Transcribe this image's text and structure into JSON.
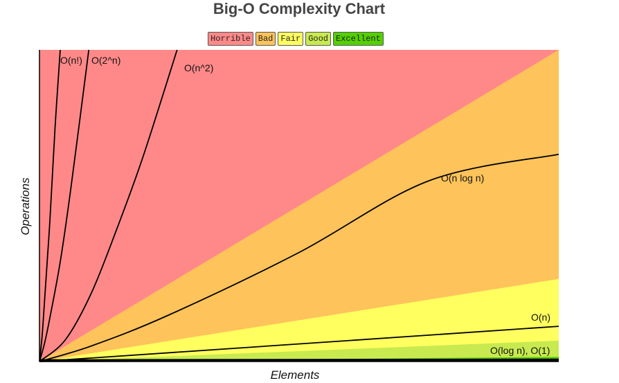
{
  "chart_data": {
    "type": "area",
    "title": "Big-O Complexity Chart",
    "xlabel": "Elements",
    "ylabel": "Operations",
    "xlim": [
      0,
      100
    ],
    "ylim": [
      0,
      100
    ],
    "grid": false,
    "legend": {
      "position": "top-center",
      "items": [
        {
          "label": "Horrible",
          "color": "#ff8989"
        },
        {
          "label": "Bad",
          "color": "#fec35a"
        },
        {
          "label": "Fair",
          "color": "#ffff60"
        },
        {
          "label": "Good",
          "color": "#c8ea50"
        },
        {
          "label": "Excellent",
          "color": "#53d000"
        }
      ]
    },
    "regions": [
      {
        "name": "Horrible",
        "color": "#ff8989",
        "upper_edge_at_x_max": 100
      },
      {
        "name": "Bad",
        "color": "#fec35a",
        "upper_edge_at_x_max": 100
      },
      {
        "name": "Fair",
        "color": "#ffff60",
        "upper_edge_at_x_max": 26.5
      },
      {
        "name": "Good",
        "color": "#c8ea50",
        "upper_edge_at_x_max": 6.7
      },
      {
        "name": "Excellent",
        "color": "#53d000",
        "upper_edge_at_x_max": 1.5
      }
    ],
    "series": [
      {
        "name": "O(n!)",
        "x": [
          0,
          0.5,
          1,
          2,
          3,
          4
        ],
        "y": [
          0,
          8,
          20,
          45,
          75,
          100
        ]
      },
      {
        "name": "O(2^n)",
        "x": [
          0,
          1,
          2,
          4,
          6,
          9.5
        ],
        "y": [
          0,
          6,
          14,
          32,
          55,
          100
        ]
      },
      {
        "name": "O(n^2)",
        "x": [
          0,
          5,
          10,
          15,
          20,
          26.5
        ],
        "y": [
          0,
          7,
          22,
          43,
          66,
          100
        ]
      },
      {
        "name": "O(n log n)",
        "x": [
          0,
          10,
          25,
          50,
          75,
          100
        ],
        "y": [
          0,
          5,
          15,
          35,
          58,
          66.5
        ]
      },
      {
        "name": "O(n)",
        "x": [
          0,
          100
        ],
        "y": [
          0,
          11.3
        ]
      },
      {
        "name": "O(log n), O(1)",
        "x": [
          0,
          100
        ],
        "y": [
          0.3,
          0.5
        ]
      }
    ]
  }
}
